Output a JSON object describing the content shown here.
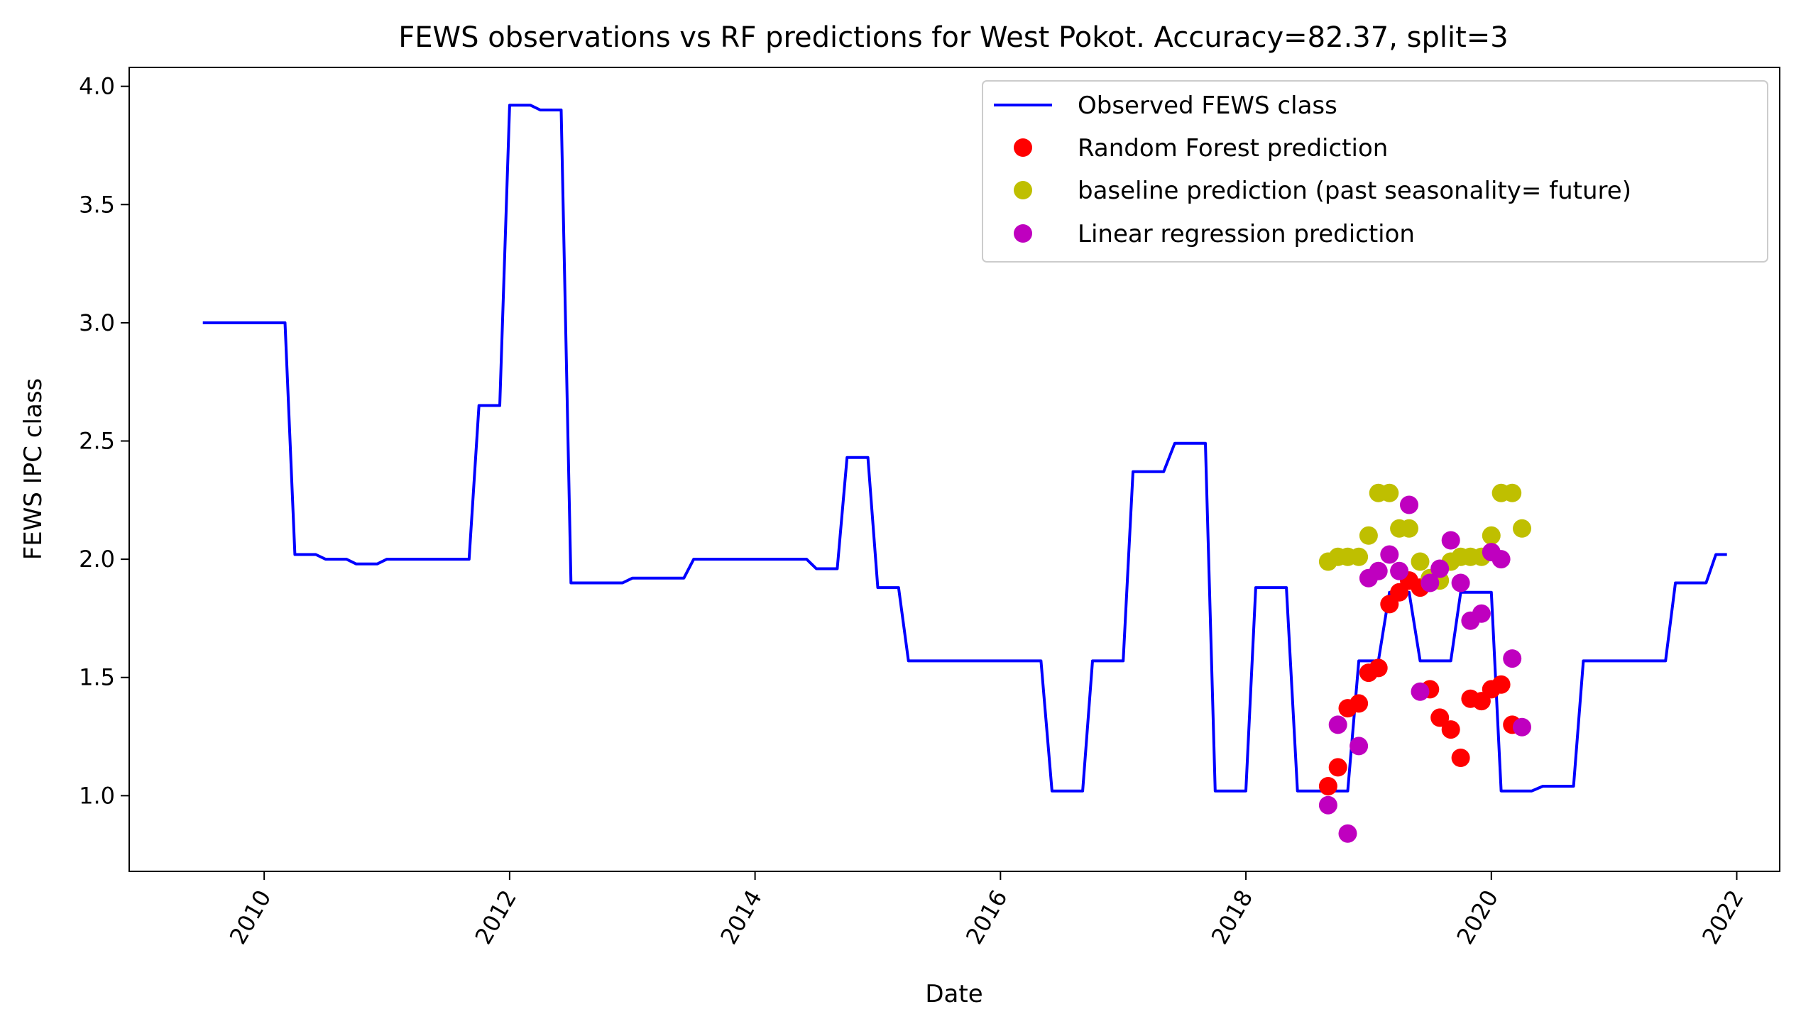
{
  "chart_data": {
    "type": "line",
    "title": "FEWS observations vs RF predictions for West Pokot. Accuracy=82.37, split=3",
    "xlabel": "Date",
    "ylabel": "FEWS IPC class",
    "xlim": [
      2008.9,
      2022.35
    ],
    "ylim": [
      0.68,
      4.08
    ],
    "x_ticks": [
      2010,
      2012,
      2014,
      2016,
      2018,
      2020,
      2022
    ],
    "x_tick_labels": [
      "2010",
      "2012",
      "2014",
      "2016",
      "2018",
      "2020",
      "2022"
    ],
    "y_ticks": [
      1.0,
      1.5,
      2.0,
      2.5,
      3.0,
      3.5,
      4.0
    ],
    "y_tick_labels": [
      "1.0",
      "1.5",
      "2.0",
      "2.5",
      "3.0",
      "3.5",
      "4.0"
    ],
    "legend_position": "top-right",
    "grid": false,
    "series": [
      {
        "name": "Observed FEWS class",
        "kind": "line",
        "color": "#0000ff",
        "x": [
          2009.5,
          2010.17,
          2010.25,
          2010.42,
          2010.5,
          2010.67,
          2010.75,
          2010.92,
          2011.0,
          2011.67,
          2011.75,
          2011.92,
          2012.0,
          2012.17,
          2012.25,
          2012.42,
          2012.5,
          2012.92,
          2013.0,
          2013.42,
          2013.5,
          2014.42,
          2014.5,
          2014.67,
          2014.75,
          2014.92,
          2015.0,
          2015.17,
          2015.25,
          2016.33,
          2016.42,
          2016.67,
          2016.75,
          2017.0,
          2017.08,
          2017.33,
          2017.42,
          2017.67,
          2017.75,
          2018.0,
          2018.08,
          2018.33,
          2018.42,
          2018.83,
          2018.92,
          2019.08,
          2019.17,
          2019.33,
          2019.42,
          2019.67,
          2019.75,
          2020.0,
          2020.08,
          2020.33,
          2020.42,
          2020.67,
          2020.75,
          2021.42,
          2021.5,
          2021.75,
          2021.83,
          2021.92
        ],
        "y": [
          3.0,
          3.0,
          2.02,
          2.02,
          2.0,
          2.0,
          1.98,
          1.98,
          2.0,
          2.0,
          2.65,
          2.65,
          3.92,
          3.92,
          3.9,
          3.9,
          1.9,
          1.9,
          1.92,
          1.92,
          2.0,
          2.0,
          1.96,
          1.96,
          2.43,
          2.43,
          1.88,
          1.88,
          1.57,
          1.57,
          1.02,
          1.02,
          1.57,
          1.57,
          2.37,
          2.37,
          2.49,
          2.49,
          1.02,
          1.02,
          1.88,
          1.88,
          1.02,
          1.02,
          1.57,
          1.57,
          1.86,
          1.86,
          1.57,
          1.57,
          1.86,
          1.86,
          1.02,
          1.02,
          1.04,
          1.04,
          1.57,
          1.57,
          1.9,
          1.9,
          2.02,
          2.02
        ]
      },
      {
        "name": "Random Forest prediction",
        "kind": "scatter",
        "color": "#ff0000",
        "x": [
          2018.67,
          2018.75,
          2018.83,
          2018.92,
          2019.0,
          2019.08,
          2019.17,
          2019.25,
          2019.33,
          2019.42,
          2019.5,
          2019.58,
          2019.67,
          2019.75,
          2019.83,
          2019.92,
          2020.0,
          2020.08,
          2020.17
        ],
        "y": [
          1.04,
          1.12,
          1.37,
          1.39,
          1.52,
          1.54,
          1.81,
          1.86,
          1.91,
          1.88,
          1.45,
          1.33,
          1.28,
          1.16,
          1.41,
          1.4,
          1.45,
          1.47,
          1.3
        ]
      },
      {
        "name": "baseline prediction (past seasonality= future)",
        "kind": "scatter",
        "color": "#bfbf00",
        "x": [
          2018.67,
          2018.75,
          2018.83,
          2018.92,
          2019.0,
          2019.08,
          2019.17,
          2019.25,
          2019.33,
          2019.42,
          2019.5,
          2019.58,
          2019.67,
          2019.75,
          2019.83,
          2019.92,
          2020.0,
          2020.08,
          2020.17,
          2020.25
        ],
        "y": [
          1.99,
          2.01,
          2.01,
          2.01,
          2.1,
          2.28,
          2.28,
          2.13,
          2.13,
          1.99,
          1.92,
          1.91,
          1.99,
          2.01,
          2.01,
          2.01,
          2.1,
          2.28,
          2.28,
          2.13
        ]
      },
      {
        "name": "Linear regression prediction",
        "kind": "scatter",
        "color": "#bf00bf",
        "x": [
          2018.67,
          2018.75,
          2018.83,
          2018.92,
          2019.0,
          2019.08,
          2019.17,
          2019.25,
          2019.33,
          2019.42,
          2019.5,
          2019.58,
          2019.67,
          2019.75,
          2019.83,
          2019.92,
          2020.0,
          2020.08,
          2020.17,
          2020.25
        ],
        "y": [
          0.96,
          1.3,
          0.84,
          1.21,
          1.92,
          1.95,
          2.02,
          1.95,
          2.23,
          1.44,
          1.9,
          1.96,
          2.08,
          1.9,
          1.74,
          1.77,
          2.03,
          2.0,
          1.58,
          1.29
        ]
      }
    ]
  }
}
